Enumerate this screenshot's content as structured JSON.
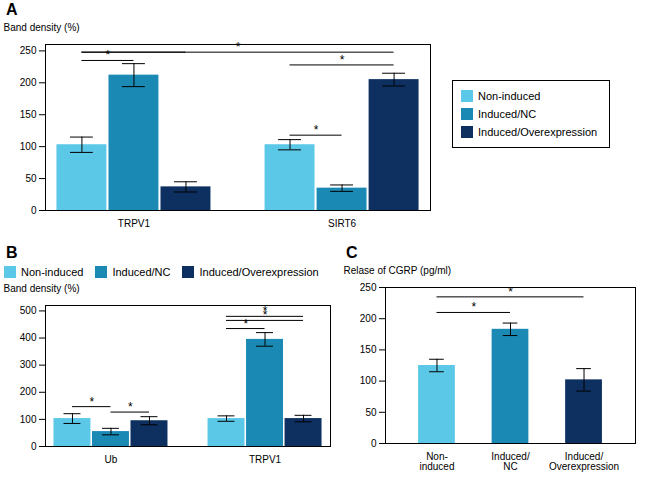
{
  "chart_data": [
    {
      "type": "bar",
      "title": "A",
      "categories": [
        "TRPV1",
        "SIRT6"
      ],
      "series": [
        {
          "name": "Non-induced",
          "color": "#5bc8e8",
          "values": [
            103,
            103
          ],
          "errors": [
            12,
            8
          ]
        },
        {
          "name": "Induced/NC",
          "color": "#1a8ab5",
          "values": [
            212,
            35
          ],
          "errors": [
            18,
            5
          ]
        },
        {
          "name": "Induced/Overexpression",
          "color": "#0d3060",
          "values": [
            37,
            205
          ],
          "errors": [
            8,
            10
          ]
        }
      ],
      "ylabel": "Band density (%)",
      "ylim": [
        0,
        260
      ],
      "yticks": [
        0,
        50,
        100,
        150,
        200,
        250
      ],
      "legend": "right",
      "annotations": [
        {
          "text": "*",
          "from": {
            "category": "TRPV1",
            "series": "Non-induced"
          },
          "to": {
            "category": "TRPV1",
            "series": "Induced/NC"
          },
          "y": 235
        },
        {
          "from": {
            "category": "TRPV1",
            "series": "Non-induced"
          },
          "to": {
            "category": "TRPV1",
            "series": "Induced/Overexpression"
          },
          "y": 248
        },
        {
          "text": "*",
          "from": {
            "category": "TRPV1",
            "series": "Non-induced"
          },
          "to": {
            "category": "SIRT6",
            "series": "Induced/Overexpression"
          },
          "y": 248
        },
        {
          "text": "*",
          "from": {
            "category": "SIRT6",
            "series": "Non-induced"
          },
          "to": {
            "category": "SIRT6",
            "series": "Induced/NC"
          },
          "y": 118
        },
        {
          "text": "*",
          "from": {
            "category": "SIRT6",
            "series": "Non-induced"
          },
          "to": {
            "category": "SIRT6",
            "series": "Induced/Overexpression"
          },
          "y": 228
        }
      ]
    },
    {
      "type": "bar",
      "title": "B",
      "categories": [
        "Ub",
        "TRPV1"
      ],
      "series": [
        {
          "name": "Non-induced",
          "color": "#5bc8e8",
          "values": [
            103,
            103
          ],
          "errors": [
            18,
            10
          ]
        },
        {
          "name": "Induced/NC",
          "color": "#1a8ab5",
          "values": [
            55,
            395
          ],
          "errors": [
            12,
            25
          ]
        },
        {
          "name": "Induced/Overexpression",
          "color": "#0d3060",
          "values": [
            95,
            103
          ],
          "errors": [
            15,
            12
          ]
        }
      ],
      "ylabel": "Band density (%)",
      "ylim": [
        0,
        520
      ],
      "yticks": [
        0,
        100,
        200,
        300,
        400,
        500
      ],
      "legend": "top",
      "annotations": [
        {
          "text": "*",
          "from": {
            "category": "Ub",
            "series": "Non-induced"
          },
          "to": {
            "category": "Ub",
            "series": "Induced/NC"
          },
          "y": 147
        },
        {
          "text": "*",
          "from": {
            "category": "Ub",
            "series": "Induced/NC"
          },
          "to": {
            "category": "Ub",
            "series": "Induced/Overexpression"
          },
          "y": 127
        },
        {
          "text": "*",
          "from": {
            "category": "TRPV1",
            "series": "Non-induced"
          },
          "to": {
            "category": "TRPV1",
            "series": "Induced/NC"
          },
          "y": 435
        },
        {
          "text": "*",
          "from": {
            "category": "TRPV1",
            "series": "Non-induced"
          },
          "to": {
            "category": "TRPV1",
            "series": "Induced/Overexpression"
          },
          "y": 465
        },
        {
          "text": "*",
          "from": {
            "category": "TRPV1",
            "series": "Non-induced"
          },
          "to": {
            "category": "TRPV1",
            "series": "Induced/Overexpression"
          },
          "y": 480
        }
      ]
    },
    {
      "type": "bar",
      "title": "C",
      "categories": [
        "Non-\ninduced",
        "Induced/\nNC",
        "Induced/\nOverexpression"
      ],
      "values": [
        125,
        183,
        102
      ],
      "errors": [
        10,
        10,
        18
      ],
      "colors": [
        "#5bc8e8",
        "#1a8ab5",
        "#0d3060"
      ],
      "ylabel": "Relase of CGRP (pg/ml)",
      "ylim": [
        0,
        250
      ],
      "yticks": [
        0,
        50,
        100,
        150,
        200,
        250
      ],
      "annotations": [
        {
          "text": "*",
          "from": {
            "category": "Non-\ninduced"
          },
          "to": {
            "category": "Induced/\nNC"
          },
          "y": 210
        },
        {
          "text": "*",
          "from": {
            "category": "Non-\ninduced"
          },
          "to": {
            "category": "Induced/\nOverexpression"
          },
          "y": 235
        }
      ]
    }
  ]
}
